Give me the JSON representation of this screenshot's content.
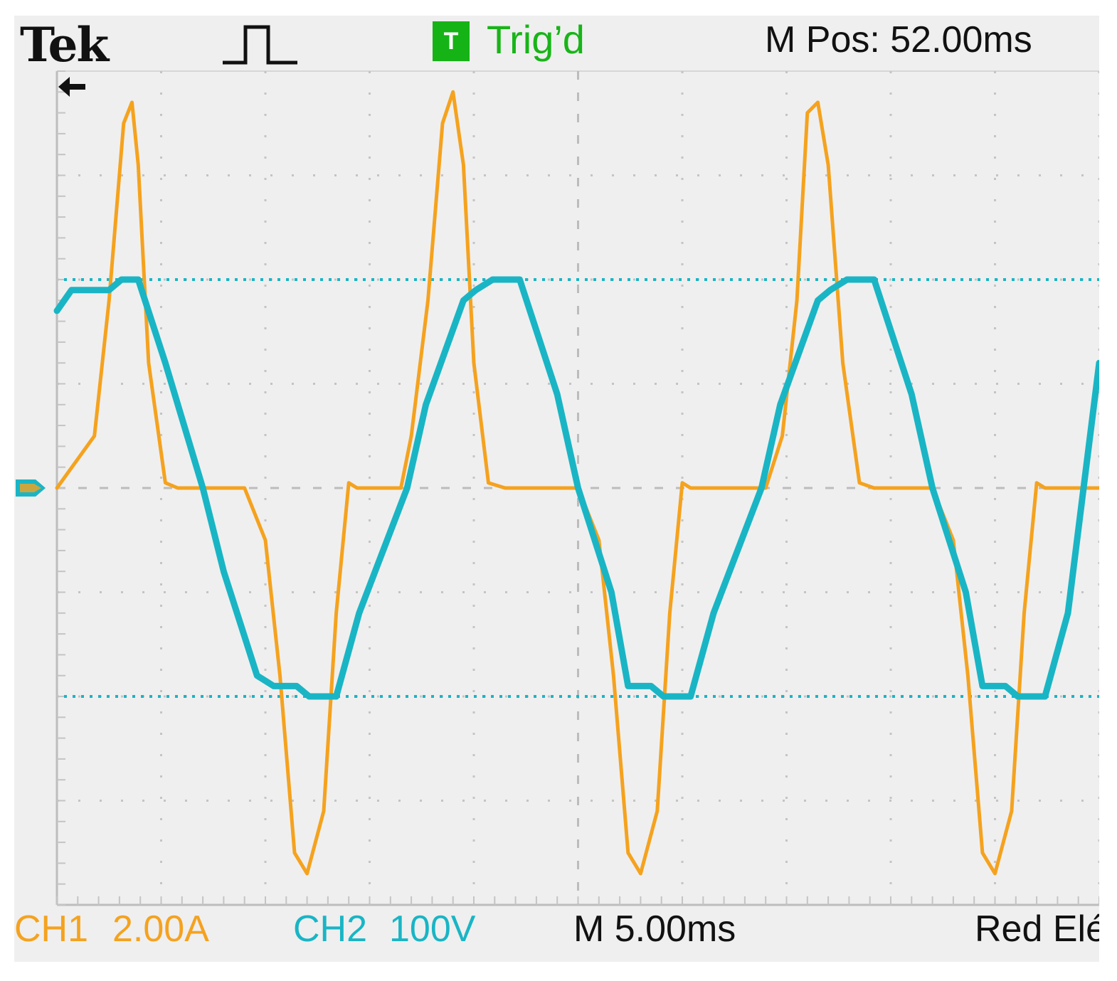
{
  "header": {
    "brand": "Tek",
    "trigger_badge": "T",
    "trigger_status": "Trig’d",
    "position_readout": "M Pos: 52.00ms"
  },
  "footer": {
    "ch1_label": "CH1",
    "ch1_scale": "2.00A",
    "ch2_label": "CH2",
    "ch2_scale": "100V",
    "timebase": "M 5.00ms",
    "extra_text": "Red Elé"
  },
  "colors": {
    "ch1": "#f5a21e",
    "ch2": "#19b5c5",
    "trigger": "#16b316",
    "background": "#efefef"
  },
  "icons": {
    "trigger_edge": "rising-pulse-icon",
    "position_arrow": "left-arrow-icon",
    "channel_marker": "ground-marker-icon"
  },
  "chart_data": {
    "type": "line",
    "xlim": [
      0,
      50
    ],
    "ylim": [
      -4,
      4
    ],
    "grid": true,
    "x_divisions": 10,
    "y_divisions": 8,
    "series": [
      {
        "name": "CH1",
        "color": "#f5a21e",
        "x": [
          0.0,
          1.8,
          2.5,
          3.2,
          3.6,
          3.9,
          4.4,
          5.2,
          5.8,
          9.0,
          10.0,
          10.7,
          11.4,
          12.0,
          12.8,
          13.4,
          14.0,
          14.4,
          14.8,
          15.5,
          16.5,
          17.0,
          17.8,
          18.5,
          19.0,
          19.5,
          20.0,
          20.7,
          21.5,
          22.2,
          25.0,
          26.0,
          26.7,
          27.4,
          28.0,
          28.8,
          29.4,
          30.0,
          30.4,
          30.8,
          31.5,
          32.5,
          34.0,
          34.8,
          35.5,
          36.0,
          36.5,
          37.0,
          37.7,
          38.5,
          39.2,
          42.0,
          43.0,
          43.7,
          44.4,
          45.0,
          45.8,
          46.4,
          47.0,
          47.4,
          47.8,
          50.0
        ],
        "values": [
          0.0,
          0.5,
          1.8,
          3.5,
          3.7,
          3.1,
          1.2,
          0.05,
          0.0,
          0.0,
          -0.5,
          -1.8,
          -3.5,
          -3.7,
          -3.1,
          -1.2,
          0.05,
          0.0,
          0.0,
          0.0,
          0.0,
          0.5,
          1.8,
          3.5,
          3.8,
          3.1,
          1.2,
          0.05,
          0.0,
          0.0,
          0.0,
          -0.5,
          -1.8,
          -3.5,
          -3.7,
          -3.1,
          -1.2,
          0.05,
          0.0,
          0.0,
          0.0,
          0.0,
          0.0,
          0.5,
          1.8,
          3.6,
          3.7,
          3.1,
          1.2,
          0.05,
          0.0,
          0.0,
          -0.5,
          -1.8,
          -3.5,
          -3.7,
          -3.1,
          -1.2,
          0.05,
          0.0,
          0.0,
          0.0
        ]
      },
      {
        "name": "CH2",
        "color": "#19b5c5",
        "x": [
          0.0,
          0.7,
          2.5,
          3.1,
          3.9,
          5.2,
          7.0,
          8.0,
          9.6,
          10.4,
          11.5,
          12.1,
          13.4,
          14.5,
          16.8,
          17.7,
          19.5,
          20.1,
          20.9,
          22.2,
          24.0,
          25.0,
          26.6,
          27.4,
          28.5,
          29.1,
          30.4,
          31.5,
          33.8,
          34.7,
          36.5,
          37.1,
          37.9,
          39.2,
          41.0,
          42.0,
          43.6,
          44.4,
          45.5,
          46.1,
          47.4,
          48.5,
          50.0
        ],
        "values": [
          1.7,
          1.9,
          1.9,
          2.0,
          2.0,
          1.2,
          0.0,
          -0.8,
          -1.8,
          -1.9,
          -1.9,
          -2.0,
          -2.0,
          -1.2,
          0.0,
          0.8,
          1.8,
          1.9,
          2.0,
          2.0,
          0.9,
          0.0,
          -1.0,
          -1.9,
          -1.9,
          -2.0,
          -2.0,
          -1.2,
          0.0,
          0.8,
          1.8,
          1.9,
          2.0,
          2.0,
          0.9,
          0.0,
          -1.0,
          -1.9,
          -1.9,
          -2.0,
          -2.0,
          -1.2,
          1.2
        ]
      }
    ],
    "cursors": [
      {
        "name": "CH2 upper cursor",
        "value": 2.0
      },
      {
        "name": "CH2 lower cursor",
        "value": -2.0
      }
    ]
  }
}
